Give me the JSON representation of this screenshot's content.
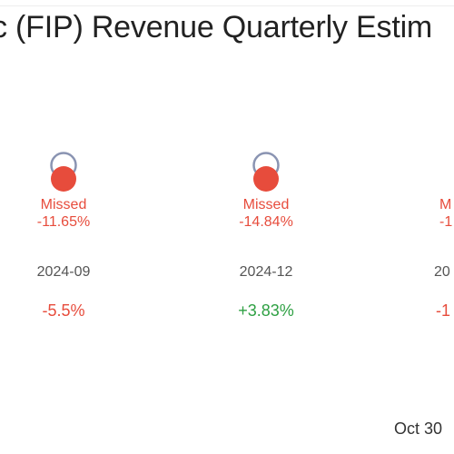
{
  "header": {
    "title": "c (FIP) Revenue Quarterly Estim"
  },
  "colors": {
    "missed": "#e74c3c",
    "estimate_ring": "#8a94b2",
    "positive": "#2ea043",
    "negative": "#e74c3c"
  },
  "chart_data": {
    "type": "scatter",
    "title": "c (FIP) Revenue Quarterly Estim",
    "categories": [
      "2024-09",
      "2024-12",
      "20"
    ],
    "series": [
      {
        "name": "",
        "results": [
          {
            "status": "Missed",
            "surprise": "-11.65%"
          },
          {
            "status": "Missed",
            "surprise": "-14.84%"
          },
          {
            "status": "M",
            "surprise": "-1"
          }
        ]
      }
    ],
    "changes": [
      "-5.5%",
      "+3.83%",
      "-1"
    ],
    "legend": "none",
    "grid": false
  },
  "footer": {
    "date": "Oct 30"
  }
}
